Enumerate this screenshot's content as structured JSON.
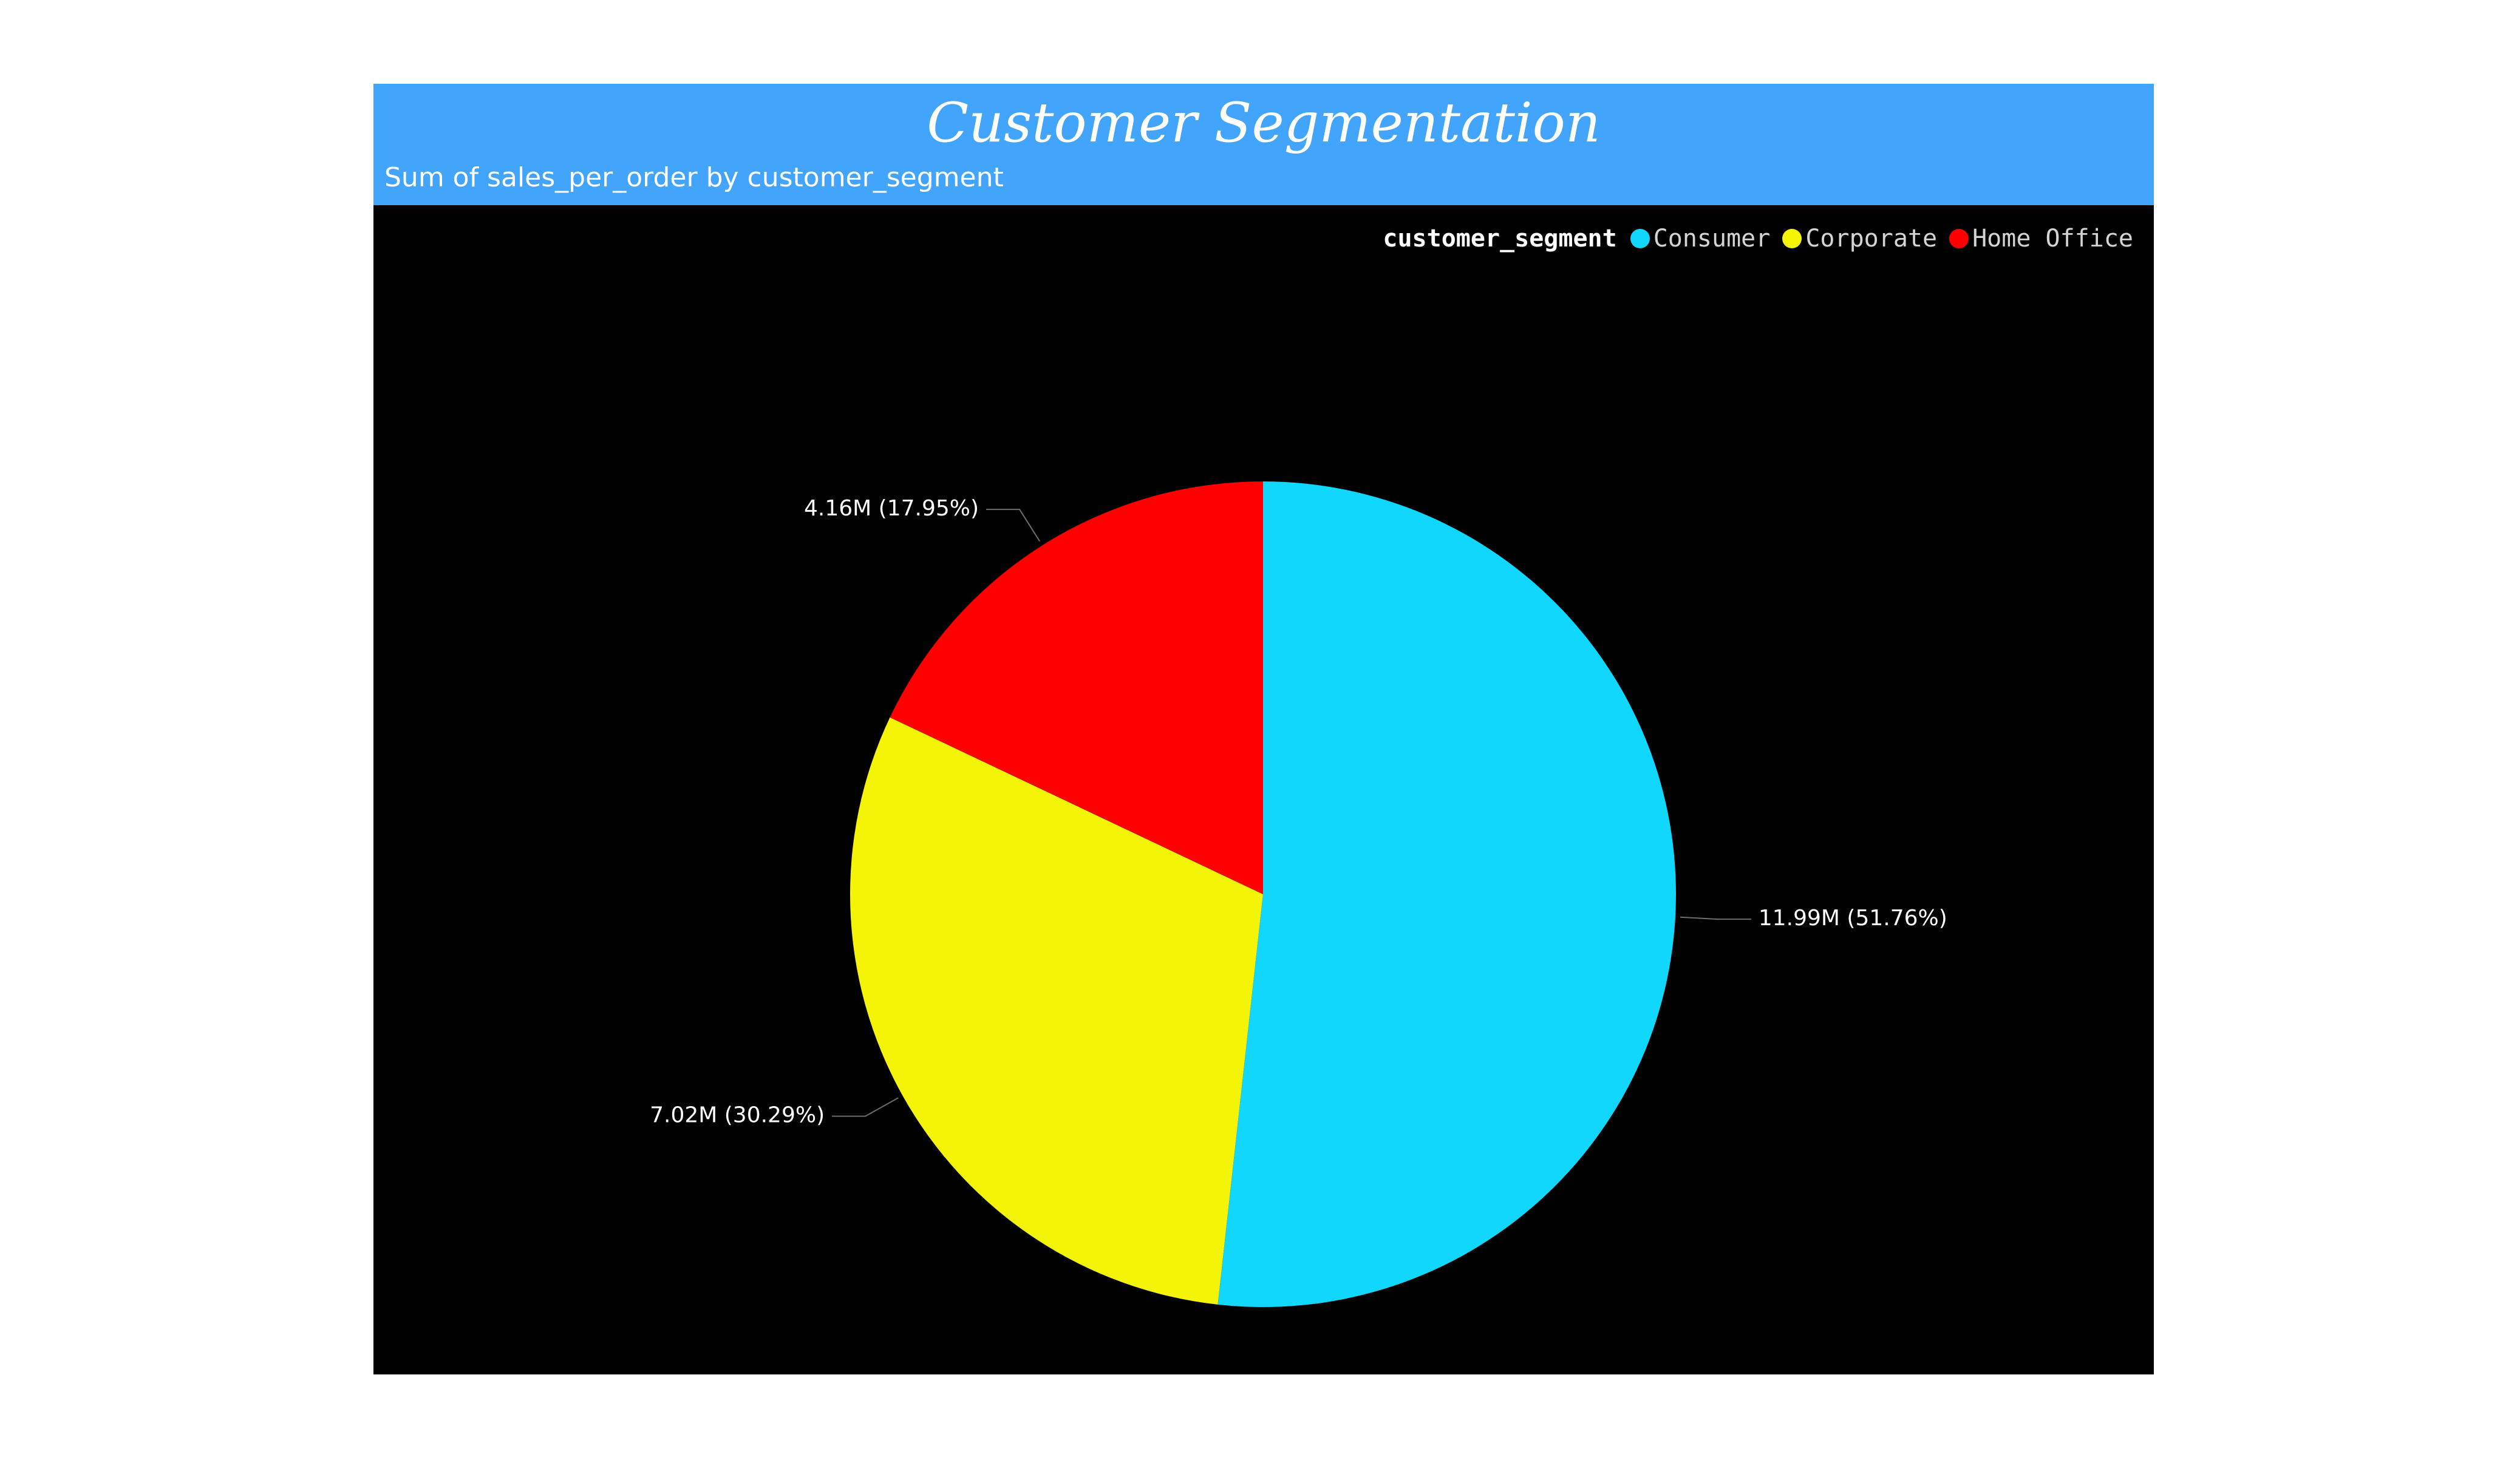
{
  "chart_data": {
    "type": "pie",
    "title": "Customer Segmentation",
    "subtitle": "Sum of sales_per_order by customer_segment",
    "legend_title": "customer_segment",
    "legend_placement": "top-right",
    "slices": [
      {
        "name": "Consumer",
        "value": 11.99,
        "percent": 51.76,
        "label": "11.99M (51.76%)",
        "color": "#12d7fd"
      },
      {
        "name": "Corporate",
        "value": 7.02,
        "percent": 30.29,
        "label": "7.02M (30.29%)",
        "color": "#f4f409"
      },
      {
        "name": "Home Office",
        "value": 4.16,
        "percent": 17.95,
        "label": "4.16M (17.95%)",
        "color": "#fe0000"
      }
    ]
  },
  "colors": {
    "header_background": "#42a5fb",
    "plot_background": "#000000"
  }
}
